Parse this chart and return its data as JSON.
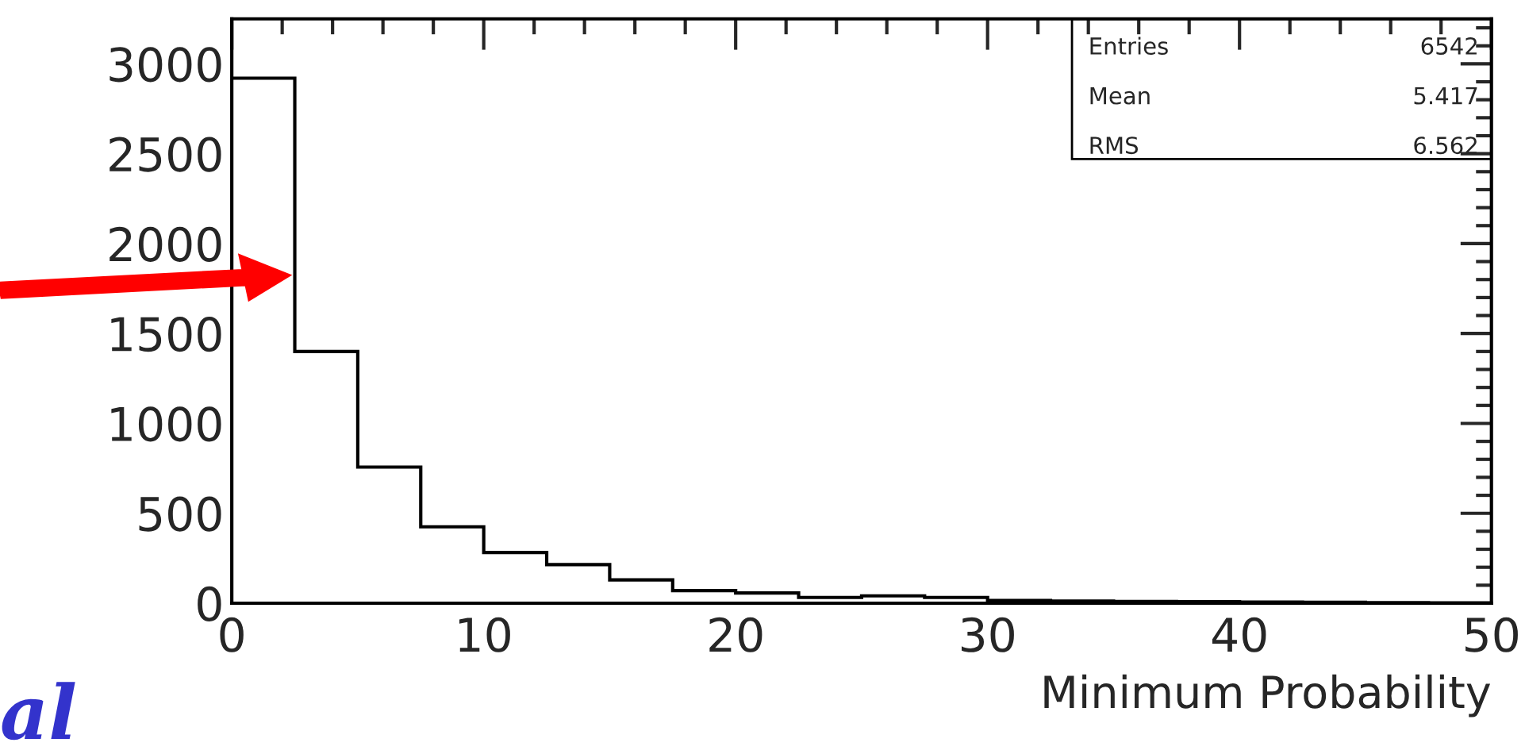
{
  "chart_data": {
    "type": "histogram",
    "xlabel": "Minimum Probability",
    "bins": [
      0,
      2.5,
      5,
      7.5,
      10,
      12.5,
      15,
      17.5,
      20,
      22.5,
      25,
      27.5,
      30,
      32.5,
      35,
      37.5,
      40,
      42.5,
      45,
      47.5,
      50
    ],
    "values": [
      2920,
      1400,
      757,
      425,
      282,
      215,
      130,
      70,
      57,
      32,
      41,
      32,
      15,
      12,
      10,
      8,
      6,
      5,
      3,
      2
    ],
    "color": "#000000",
    "xlim": [
      0,
      50
    ],
    "xticks": [
      0,
      10,
      20,
      30,
      40,
      50
    ],
    "ylim": [
      0,
      3250
    ],
    "yticks": [
      0,
      500,
      1000,
      1500,
      2000,
      2500,
      3000
    ],
    "grid": false,
    "legend": false,
    "annotations": [
      "Entries",
      "6542",
      "Mean",
      "5.417",
      "RMS",
      "6.562",
      "al"
    ]
  }
}
